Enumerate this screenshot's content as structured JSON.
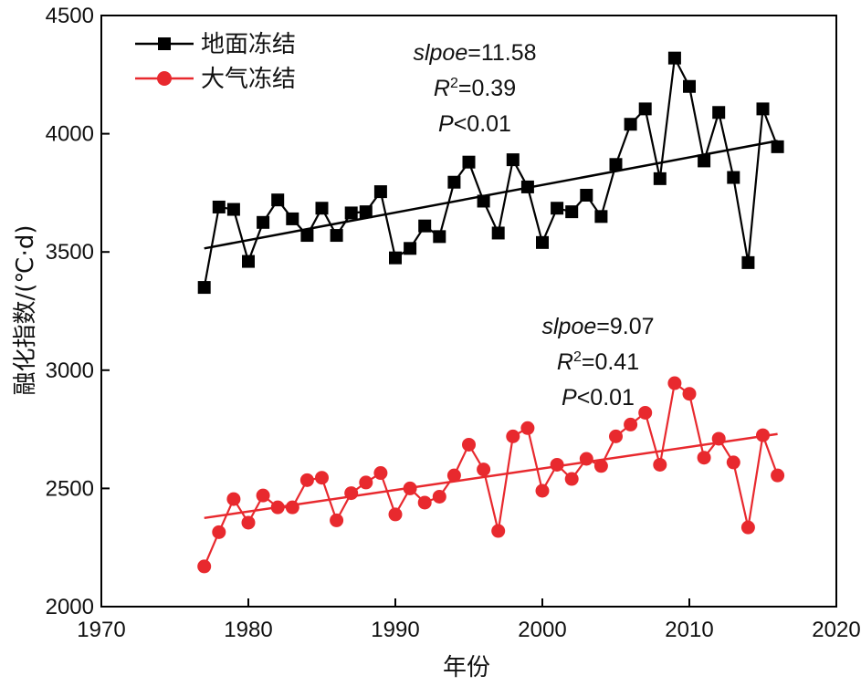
{
  "chart_data": {
    "type": "line",
    "xlabel": "年份",
    "ylabel": "融化指数/(℃·d)",
    "xlim": [
      1970,
      2020
    ],
    "ylim": [
      2000,
      4500
    ],
    "x_ticks": [
      "1970",
      "1980",
      "1990",
      "2000",
      "2010",
      "2020"
    ],
    "y_ticks": [
      "2000",
      "2500",
      "3000",
      "3500",
      "4000",
      "4500"
    ],
    "grid": false,
    "legend_position": "top-left",
    "x": [
      1977,
      1978,
      1979,
      1980,
      1981,
      1982,
      1983,
      1984,
      1985,
      1986,
      1987,
      1988,
      1989,
      1990,
      1991,
      1992,
      1993,
      1994,
      1995,
      1996,
      1997,
      1998,
      1999,
      2000,
      2001,
      2002,
      2003,
      2004,
      2005,
      2006,
      2007,
      2008,
      2009,
      2010,
      2011,
      2012,
      2013,
      2014,
      2015,
      2016
    ],
    "series": [
      {
        "name": "地面冻结",
        "color": "#000000",
        "marker": "square",
        "values": [
          3350,
          3690,
          3680,
          3460,
          3625,
          3720,
          3640,
          3570,
          3685,
          3570,
          3665,
          3670,
          3755,
          3475,
          3515,
          3610,
          3565,
          3795,
          3880,
          3715,
          3580,
          3890,
          3775,
          3540,
          3685,
          3670,
          3740,
          3650,
          3870,
          4040,
          4105,
          3810,
          4320,
          4200,
          3885,
          4090,
          3815,
          3455,
          4105,
          3945
        ],
        "trend": {
          "start": [
            1977,
            3515
          ],
          "end": [
            2016,
            3970
          ]
        },
        "annotation": {
          "slope_label": "slpoe",
          "slope_value": "=11.58",
          "r_label": "R",
          "r_sup": "2",
          "r_value": "=0.39",
          "p_label": "P",
          "p_value": "<0.01"
        }
      },
      {
        "name": "大气冻结",
        "color": "#e8292e",
        "marker": "circle",
        "values": [
          2170,
          2315,
          2455,
          2355,
          2470,
          2420,
          2420,
          2535,
          2545,
          2365,
          2480,
          2525,
          2565,
          2390,
          2500,
          2440,
          2465,
          2555,
          2685,
          2580,
          2320,
          2720,
          2755,
          2490,
          2600,
          2540,
          2625,
          2595,
          2720,
          2770,
          2820,
          2600,
          2945,
          2900,
          2630,
          2710,
          2610,
          2335,
          2725,
          2555
        ],
        "trend": {
          "start": [
            1977,
            2375
          ],
          "end": [
            2016,
            2730
          ]
        },
        "annotation": {
          "slope_label": "slpoe",
          "slope_value": "=9.07",
          "r_label": "R",
          "r_sup": "2",
          "r_value": "=0.41",
          "p_label": "P",
          "p_value": "<0.01"
        }
      }
    ]
  }
}
